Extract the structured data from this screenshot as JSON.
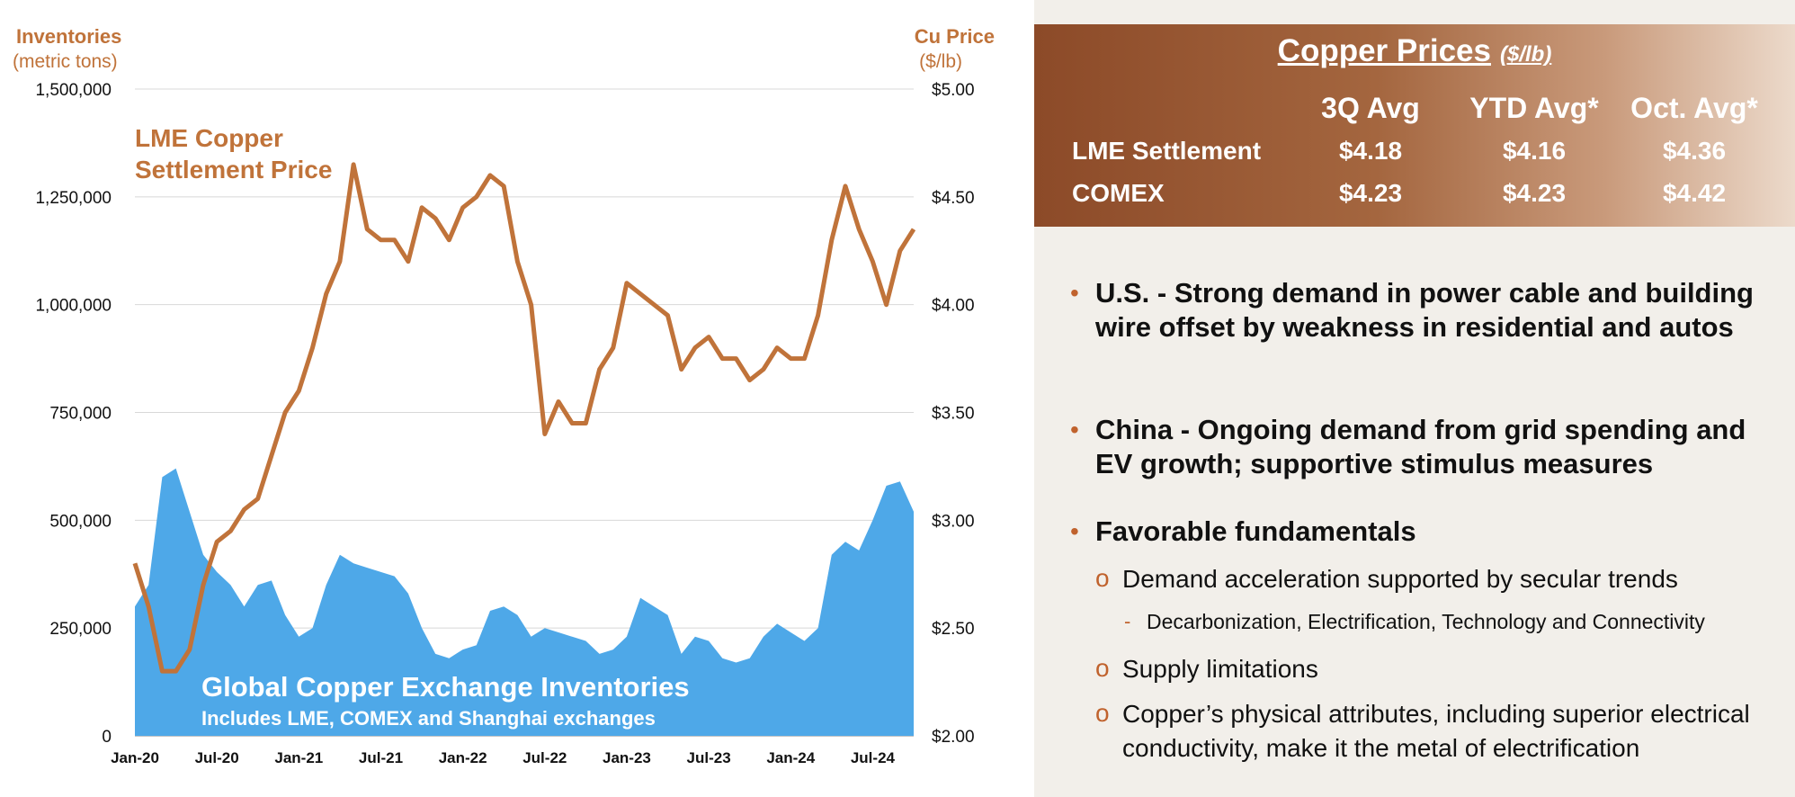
{
  "chart_data": {
    "type": "area+line",
    "left_axis": {
      "label_line1": "Inventories",
      "label_line2": "(metric tons)",
      "min": 0,
      "max": 1500000,
      "ticks": [
        "0",
        "250,000",
        "500,000",
        "750,000",
        "1,000,000",
        "1,250,000",
        "1,500,000"
      ]
    },
    "right_axis": {
      "label_line1": "Cu Price",
      "label_line2": "($/lb)",
      "min": 2.0,
      "max": 5.0,
      "ticks": [
        "$2.00",
        "$2.50",
        "$3.00",
        "$3.50",
        "$4.00",
        "$4.50",
        "$5.00"
      ]
    },
    "x_axis": {
      "ticks": [
        "Jan-20",
        "Jul-20",
        "Jan-21",
        "Jul-21",
        "Jan-22",
        "Jul-22",
        "Jan-23",
        "Jul-23",
        "Jan-24",
        "Jul-24"
      ]
    },
    "grid": true,
    "series_price": {
      "name_line1": "LME Copper",
      "name_line2": "Settlement Price",
      "color": "#c0733a",
      "axis": "right",
      "x": [
        "2020-01",
        "2020-02",
        "2020-03",
        "2020-04",
        "2020-05",
        "2020-06",
        "2020-07",
        "2020-08",
        "2020-09",
        "2020-10",
        "2020-11",
        "2020-12",
        "2021-01",
        "2021-02",
        "2021-03",
        "2021-04",
        "2021-05",
        "2021-06",
        "2021-07",
        "2021-08",
        "2021-09",
        "2021-10",
        "2021-11",
        "2021-12",
        "2022-01",
        "2022-02",
        "2022-03",
        "2022-04",
        "2022-05",
        "2022-06",
        "2022-07",
        "2022-08",
        "2022-09",
        "2022-10",
        "2022-11",
        "2022-12",
        "2023-01",
        "2023-02",
        "2023-03",
        "2023-04",
        "2023-05",
        "2023-06",
        "2023-07",
        "2023-08",
        "2023-09",
        "2023-10",
        "2023-11",
        "2023-12",
        "2024-01",
        "2024-02",
        "2024-03",
        "2024-04",
        "2024-05",
        "2024-06",
        "2024-07",
        "2024-08",
        "2024-09",
        "2024-10"
      ],
      "values": [
        2.8,
        2.6,
        2.3,
        2.3,
        2.4,
        2.7,
        2.9,
        2.95,
        3.05,
        3.1,
        3.3,
        3.5,
        3.6,
        3.8,
        4.05,
        4.2,
        4.65,
        4.35,
        4.3,
        4.3,
        4.2,
        4.45,
        4.4,
        4.3,
        4.45,
        4.5,
        4.6,
        4.55,
        4.2,
        4.0,
        3.4,
        3.55,
        3.45,
        3.45,
        3.7,
        3.8,
        4.1,
        4.05,
        4.0,
        3.95,
        3.7,
        3.8,
        3.85,
        3.75,
        3.75,
        3.65,
        3.7,
        3.8,
        3.75,
        3.75,
        3.95,
        4.3,
        4.55,
        4.35,
        4.2,
        4.0,
        4.25,
        4.35
      ]
    },
    "series_inventory": {
      "name_line1": "Global Copper Exchange Inventories",
      "name_line2": "Includes LME, COMEX and Shanghai exchanges",
      "color": "#4ea8e8",
      "axis": "left",
      "x": [
        "2020-01",
        "2020-02",
        "2020-03",
        "2020-04",
        "2020-05",
        "2020-06",
        "2020-07",
        "2020-08",
        "2020-09",
        "2020-10",
        "2020-11",
        "2020-12",
        "2021-01",
        "2021-02",
        "2021-03",
        "2021-04",
        "2021-05",
        "2021-06",
        "2021-07",
        "2021-08",
        "2021-09",
        "2021-10",
        "2021-11",
        "2021-12",
        "2022-01",
        "2022-02",
        "2022-03",
        "2022-04",
        "2022-05",
        "2022-06",
        "2022-07",
        "2022-08",
        "2022-09",
        "2022-10",
        "2022-11",
        "2022-12",
        "2023-01",
        "2023-02",
        "2023-03",
        "2023-04",
        "2023-05",
        "2023-06",
        "2023-07",
        "2023-08",
        "2023-09",
        "2023-10",
        "2023-11",
        "2023-12",
        "2024-01",
        "2024-02",
        "2024-03",
        "2024-04",
        "2024-05",
        "2024-06",
        "2024-07",
        "2024-08",
        "2024-09",
        "2024-10"
      ],
      "values": [
        300000,
        350000,
        600000,
        620000,
        520000,
        420000,
        380000,
        350000,
        300000,
        350000,
        360000,
        280000,
        230000,
        250000,
        350000,
        420000,
        400000,
        390000,
        380000,
        370000,
        330000,
        250000,
        190000,
        180000,
        200000,
        210000,
        290000,
        300000,
        280000,
        230000,
        250000,
        240000,
        230000,
        220000,
        190000,
        200000,
        230000,
        320000,
        300000,
        280000,
        190000,
        230000,
        220000,
        180000,
        170000,
        180000,
        230000,
        260000,
        240000,
        220000,
        250000,
        420000,
        450000,
        430000,
        500000,
        580000,
        590000,
        520000
      ]
    }
  },
  "panel": {
    "title": "Copper Prices",
    "unit": "($/lb)",
    "columns": [
      "3Q Avg",
      "YTD Avg*",
      "Oct. Avg*"
    ],
    "rows": [
      {
        "label": "LME Settlement",
        "values": [
          "$4.18",
          "$4.16",
          "$4.36"
        ]
      },
      {
        "label": "COMEX",
        "values": [
          "$4.23",
          "$4.23",
          "$4.42"
        ]
      }
    ],
    "bullets": [
      {
        "marker": "•",
        "text": "U.S. - Strong demand in power cable and building wire offset by weakness in residential and autos"
      },
      {
        "marker": "•",
        "text": "China - Ongoing demand from grid spending and EV growth; supportive stimulus measures"
      },
      {
        "marker": "•",
        "text": "Favorable fundamentals"
      }
    ],
    "sub_bullets": [
      {
        "marker": "o",
        "text": "Demand acceleration supported by secular trends"
      },
      {
        "marker": "-",
        "text": "Decarbonization, Electrification, Technology and Connectivity"
      },
      {
        "marker": "o",
        "text": "Supply limitations"
      },
      {
        "marker": "o",
        "text": "Copper’s physical attributes, including superior electrical conductivity, make it the metal of electrification"
      }
    ]
  },
  "colors": {
    "accent": "#c0733a",
    "inventory": "#4ea8e8",
    "header_dark": "#8c4a28"
  }
}
